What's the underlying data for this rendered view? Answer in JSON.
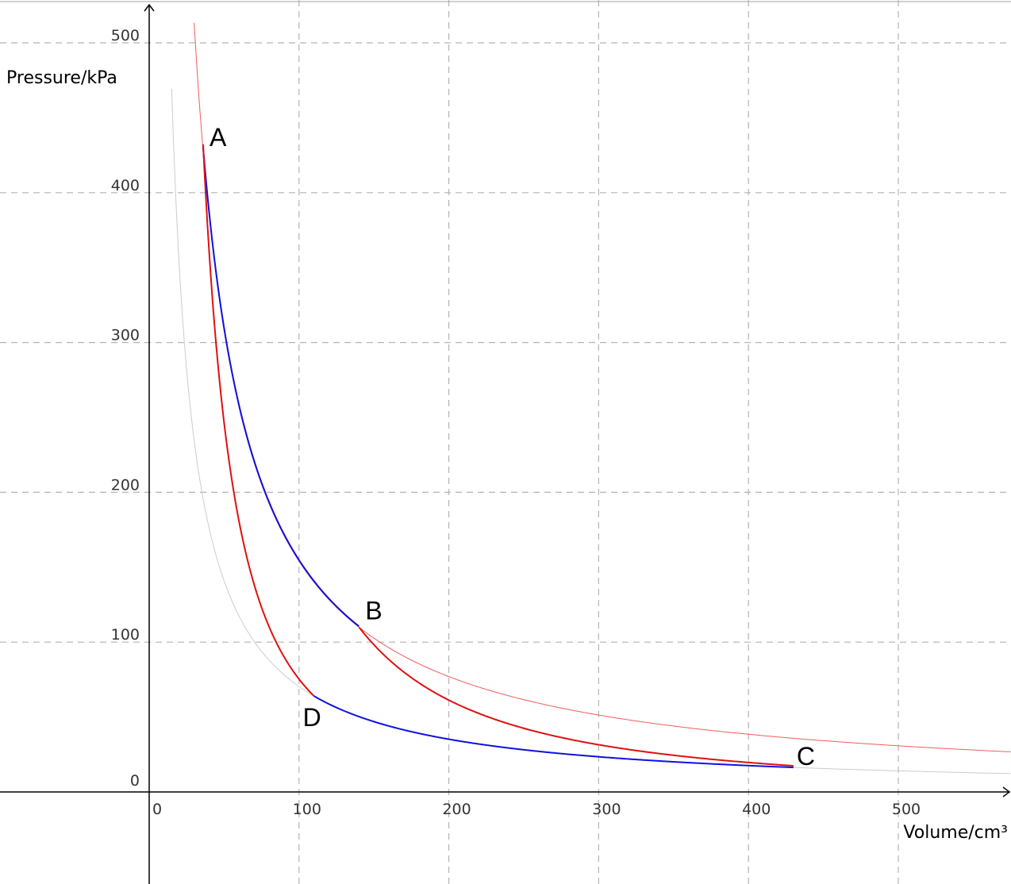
{
  "chart_data": {
    "type": "line",
    "title": "",
    "xlabel": "Volume/cm³",
    "ylabel": "Pressure/kPa",
    "xlim": [
      -100,
      575
    ],
    "ylim": [
      -62,
      528
    ],
    "grid": true,
    "x_ticks": [
      0,
      100,
      200,
      300,
      400,
      500
    ],
    "y_ticks": [
      0,
      100,
      200,
      300,
      400,
      500
    ],
    "x_tick_labels": [
      "0",
      "100",
      "200",
      "300",
      "400",
      "500"
    ],
    "y_tick_labels": [
      "0",
      "100",
      "200",
      "300",
      "400",
      "500"
    ],
    "points": [
      {
        "label": "A",
        "x": 36,
        "y": 430
      },
      {
        "label": "B",
        "x": 140,
        "y": 110
      },
      {
        "label": "C",
        "x": 430,
        "y": 17
      },
      {
        "label": "D",
        "x": 110,
        "y": 64
      }
    ],
    "series": [
      {
        "role": "isotherm-hot",
        "color": "#f25c5c",
        "x_start": 30,
        "x_end": 575,
        "k": 15400,
        "gamma": 1.0,
        "stroke_width": 1
      },
      {
        "role": "isotherm-cold",
        "color": "#cccccc",
        "x_start": 15,
        "x_end": 575,
        "k": 7040,
        "gamma": 1.0,
        "stroke_width": 1
      },
      {
        "role": "process-AB",
        "color": "#1010e0",
        "x_start": 36,
        "x_end": 140,
        "k": 15480,
        "gamma": 1.0,
        "stroke_width": 2
      },
      {
        "role": "process-BC",
        "color": "#e01010",
        "x_start": 140,
        "x_end": 430,
        "k": 110,
        "gamma": 1.64,
        "x_ref": 140,
        "stroke_width": 2
      },
      {
        "role": "process-CD",
        "color": "#1010e0",
        "x_start": 110,
        "x_end": 430,
        "k": 7040,
        "gamma": 1.0,
        "stroke_width": 2
      },
      {
        "role": "process-DA",
        "color": "#e01010",
        "x_start": 36,
        "x_end": 110,
        "k": 64,
        "gamma": 1.71,
        "x_ref": 110,
        "stroke_width": 2
      }
    ],
    "colors": {
      "grid": "#b4b4b4",
      "axis": "#000000",
      "isotherm_hot": "#f25c5c",
      "isotherm_cold": "#cccccc",
      "blue": "#1010e0",
      "red": "#e01010"
    }
  }
}
